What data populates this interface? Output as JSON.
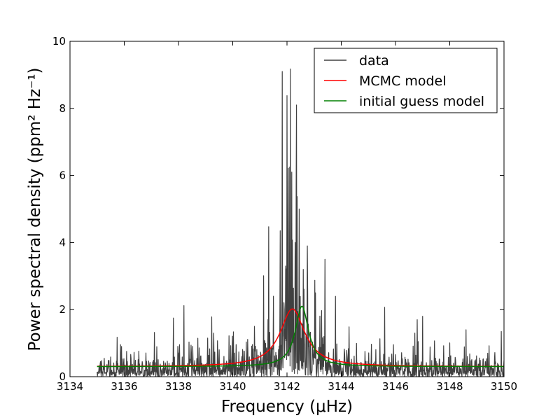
{
  "chart_data": {
    "type": "line",
    "xlabel": "Frequency (μHz)",
    "ylabel": "Power spectral density (ppm² Hz⁻¹)",
    "xlim": [
      3134,
      3150
    ],
    "ylim": [
      0,
      10
    ],
    "x_ticks": [
      "3134",
      "3136",
      "3138",
      "3140",
      "3142",
      "3144",
      "3146",
      "3148",
      "3150"
    ],
    "y_ticks": [
      "0",
      "2",
      "4",
      "6",
      "8",
      "10"
    ],
    "grid": false,
    "legend_position": "top-right",
    "series": [
      {
        "name": "data",
        "color": "#404040",
        "style": "noisy-spectrum",
        "x_range": [
          3135,
          3150
        ],
        "peaks": [
          {
            "x": 3135.9,
            "y": 0.9
          },
          {
            "x": 3138.2,
            "y": 2.12
          },
          {
            "x": 3139.3,
            "y": 1.3
          },
          {
            "x": 3140.8,
            "y": 1.5
          },
          {
            "x": 3141.32,
            "y": 4.47
          },
          {
            "x": 3141.5,
            "y": 2.4
          },
          {
            "x": 3141.75,
            "y": 4.35
          },
          {
            "x": 3141.82,
            "y": 9.1
          },
          {
            "x": 3141.95,
            "y": 3.3
          },
          {
            "x": 3142.1,
            "y": 6.25
          },
          {
            "x": 3142.18,
            "y": 6.1
          },
          {
            "x": 3142.3,
            "y": 4.0
          },
          {
            "x": 3142.35,
            "y": 8.1
          },
          {
            "x": 3142.45,
            "y": 5.0
          },
          {
            "x": 3142.6,
            "y": 3.2
          },
          {
            "x": 3142.75,
            "y": 3.9
          },
          {
            "x": 3143.05,
            "y": 2.5
          },
          {
            "x": 3143.4,
            "y": 3.5
          },
          {
            "x": 3145.6,
            "y": 2.07
          },
          {
            "x": 3146.8,
            "y": 1.7
          },
          {
            "x": 3147.0,
            "y": 1.8
          },
          {
            "x": 3148.6,
            "y": 1.4
          },
          {
            "x": 3149.9,
            "y": 1.35
          }
        ]
      },
      {
        "name": "MCMC model",
        "color": "#ff0000",
        "model": "lorentzian",
        "center": 3142.2,
        "height": 1.72,
        "half_width": 0.55,
        "background": 0.3
      },
      {
        "name": "initial guess model",
        "color": "#008000",
        "model": "lorentzian",
        "center": 3142.55,
        "height": 1.8,
        "half_width": 0.3,
        "background": 0.3
      }
    ]
  }
}
